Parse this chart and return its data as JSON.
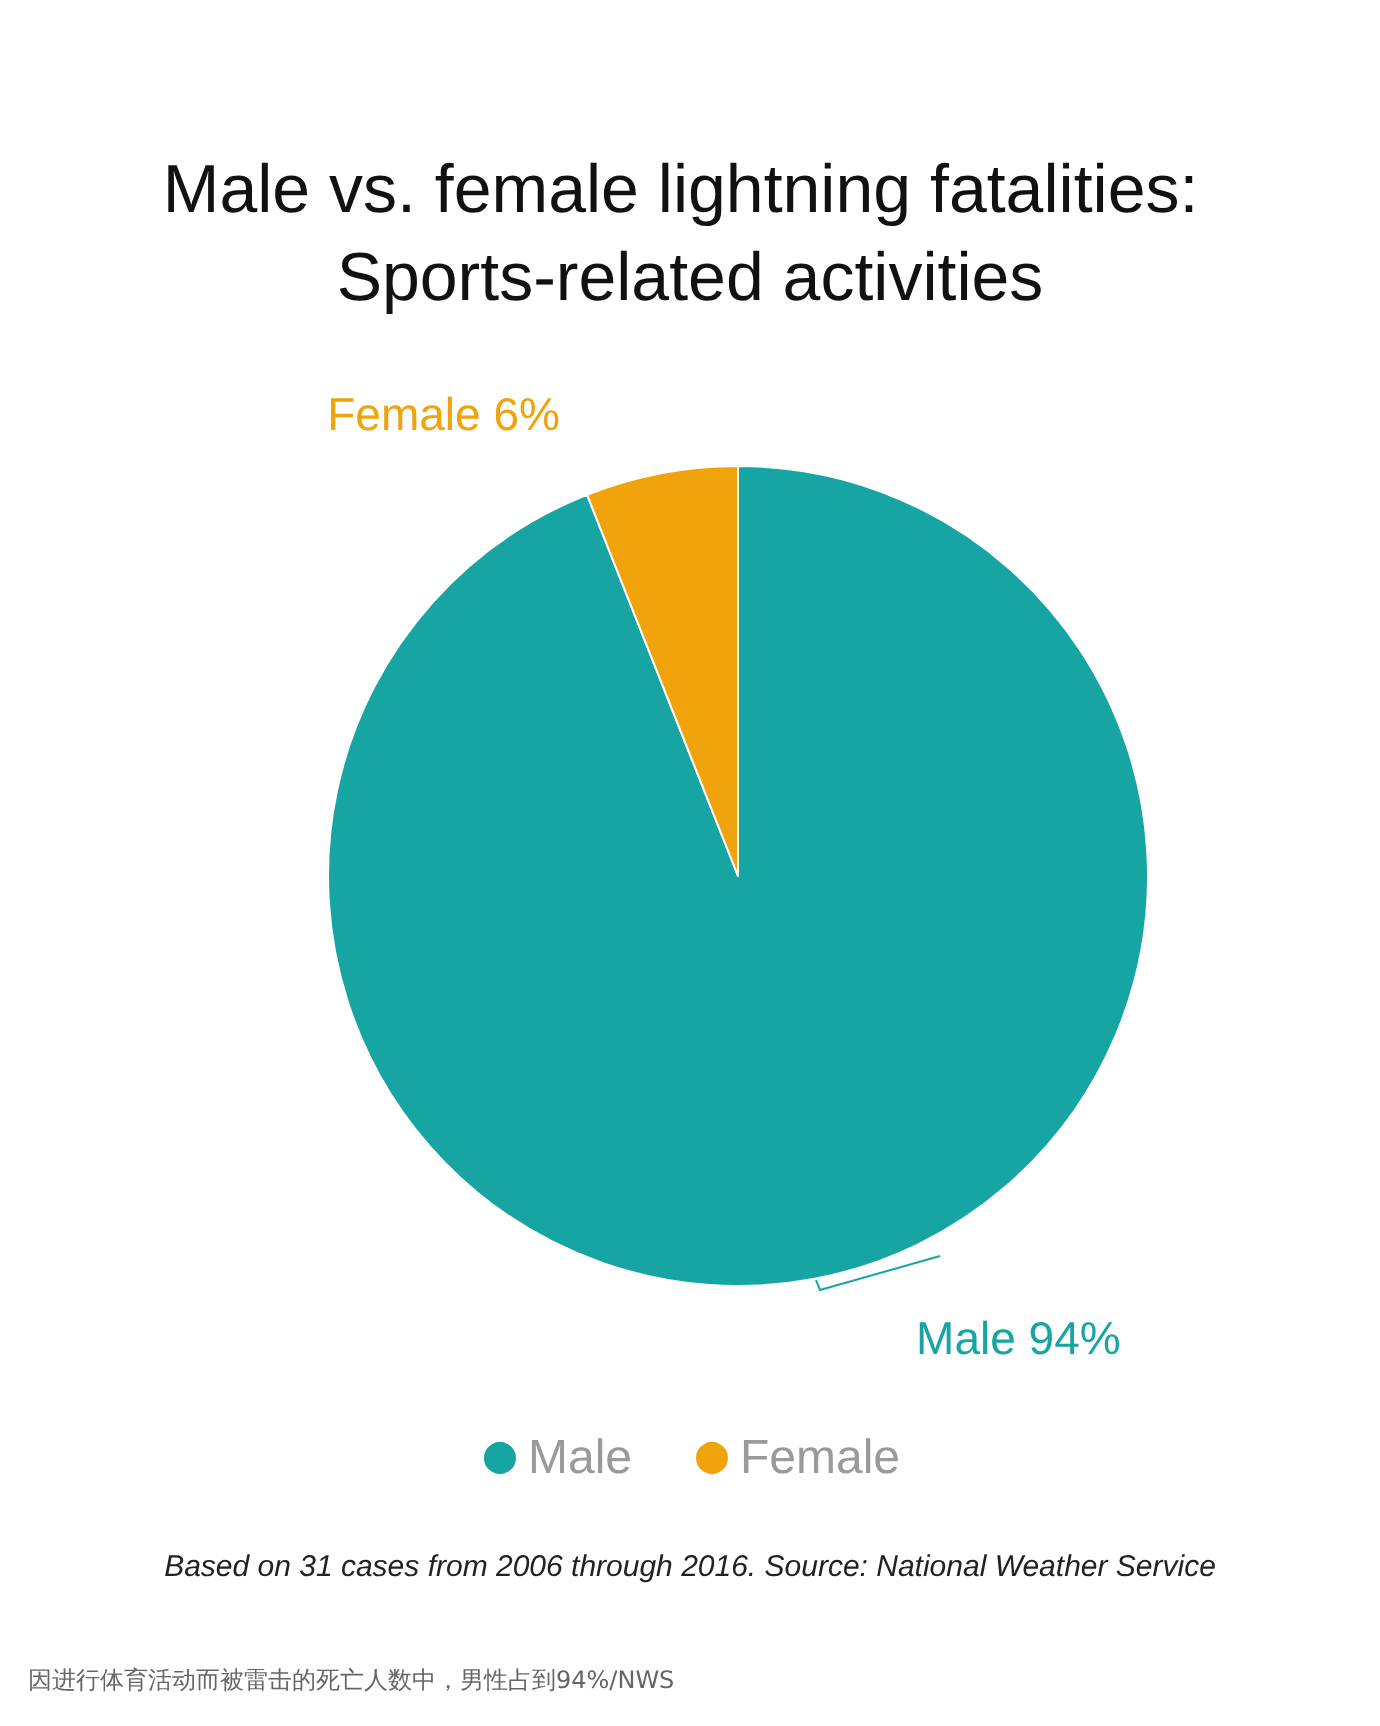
{
  "chart_data": {
    "type": "pie",
    "title": "Male vs. female lightning fatalities: Sports-related activities",
    "categories": [
      "Male",
      "Female"
    ],
    "values": [
      94,
      6
    ],
    "colors": [
      "#17a5a3",
      "#f0a30a"
    ],
    "value_labels": [
      "94%",
      "6%"
    ],
    "legend": "bottom",
    "annotations": [
      "Based on 31 cases from 2006 through 2016. Source: National Weather Service",
      "因进行体育活动而被雷击的死亡人数中，男性占到94%/NWS"
    ]
  }
}
